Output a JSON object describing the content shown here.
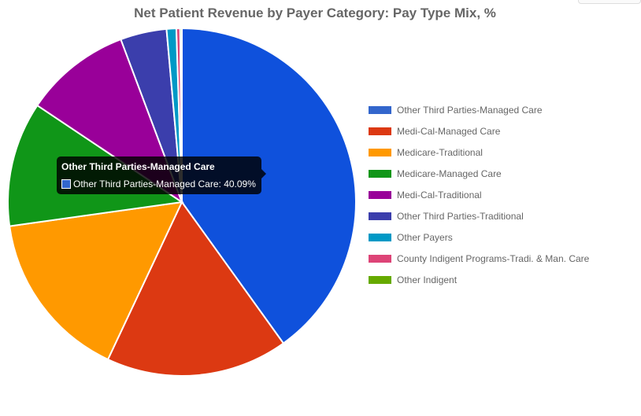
{
  "chart_data": {
    "type": "pie",
    "title": "Net Patient Revenue by Payer Category: Pay Type Mix, %",
    "legend_position": "right",
    "slices": [
      {
        "label": "Other Third Parties-Managed Care",
        "value": 40.09,
        "color": "#0f51dc"
      },
      {
        "label": "Medi-Cal-Managed Care",
        "value": 16.9,
        "color": "#dc3912"
      },
      {
        "label": "Medicare-Traditional",
        "value": 15.8,
        "color": "#ff9900"
      },
      {
        "label": "Medicare-Managed Care",
        "value": 11.6,
        "color": "#109618"
      },
      {
        "label": "Medi-Cal-Traditional",
        "value": 9.9,
        "color": "#990099"
      },
      {
        "label": "Other Third Parties-Traditional",
        "value": 4.3,
        "color": "#3b3eac"
      },
      {
        "label": "Other Payers",
        "value": 0.9,
        "color": "#0099c6"
      },
      {
        "label": "County Indigent Programs-Tradi. & Man. Care",
        "value": 0.35,
        "color": "#dd4477"
      },
      {
        "label": "Other Indigent",
        "value": 0.16,
        "color": "#66aa00"
      }
    ],
    "legend_swatch_colors": [
      "#3366cc",
      "#dc3912",
      "#ff9900",
      "#109618",
      "#990099",
      "#3b3eac",
      "#0099c6",
      "#dd4477",
      "#66aa00"
    ]
  },
  "tooltip": {
    "title": "Other Third Parties-Managed Care",
    "body": "Other Third Parties-Managed Care: 40.09%",
    "swatch_color": "#3366cc"
  }
}
